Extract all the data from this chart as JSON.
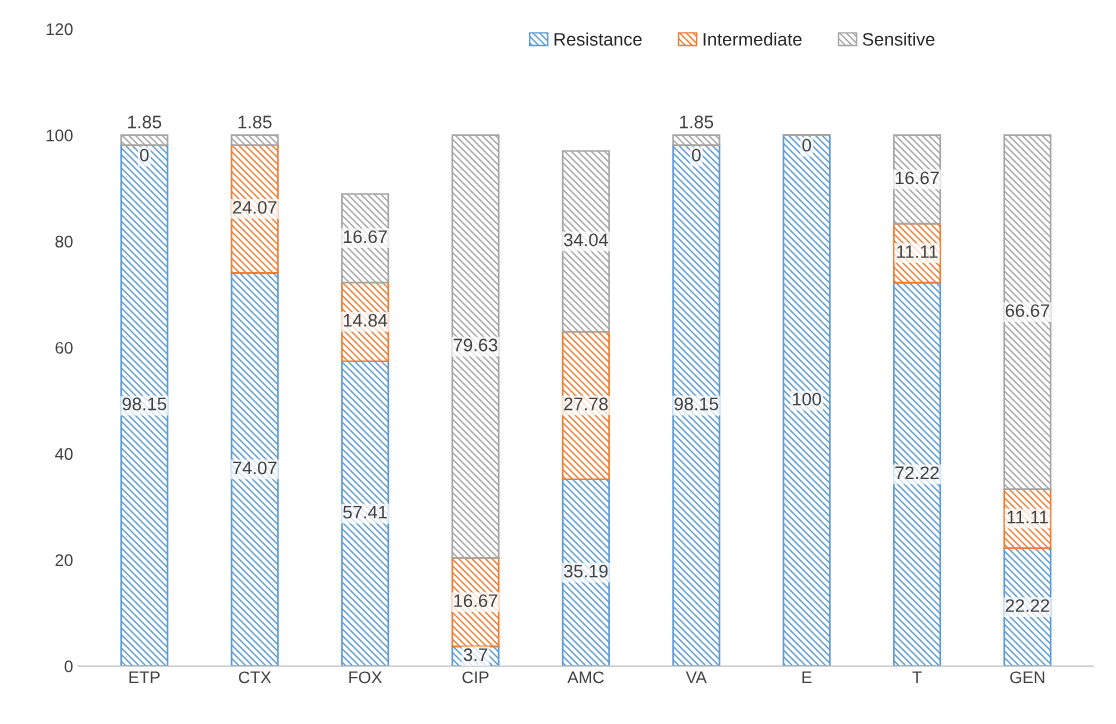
{
  "chart_data": {
    "type": "bar",
    "stacked": true,
    "categories": [
      "ETP",
      "CTX",
      "FOX",
      "CIP",
      "AMC",
      "VA",
      "E",
      "T",
      "GEN"
    ],
    "series": [
      {
        "name": "Resistance",
        "color": "#5b9bd5",
        "values": [
          98.15,
          74.07,
          57.41,
          3.7,
          35.19,
          98.15,
          100,
          72.22,
          22.22
        ],
        "value_labels": [
          "98.15",
          "74.07",
          "57.41",
          "3.7",
          "35.19",
          "98.15",
          "100",
          "72.22",
          "22.22"
        ]
      },
      {
        "name": "Intermediate",
        "color": "#ed7d31",
        "values": [
          0,
          24.07,
          14.84,
          16.67,
          27.78,
          0,
          0,
          11.11,
          11.11
        ],
        "value_labels": [
          "0",
          "24.07",
          "14.84",
          "16.67",
          "27.78",
          "0",
          "0",
          "11.11",
          "11.11"
        ]
      },
      {
        "name": "Sensitive",
        "color": "#a5a5a5",
        "values": [
          1.85,
          1.85,
          16.67,
          79.63,
          34.04,
          1.85,
          0,
          16.67,
          66.67
        ],
        "value_labels": [
          "1.85",
          "1.85",
          "16.67",
          "79.63",
          "34.04",
          "1.85",
          null,
          "16.67",
          "66.67"
        ]
      }
    ],
    "ylim": [
      0,
      120
    ],
    "yticks": [
      0,
      20,
      40,
      60,
      80,
      100,
      120
    ],
    "legend": "top right",
    "grid": false
  }
}
